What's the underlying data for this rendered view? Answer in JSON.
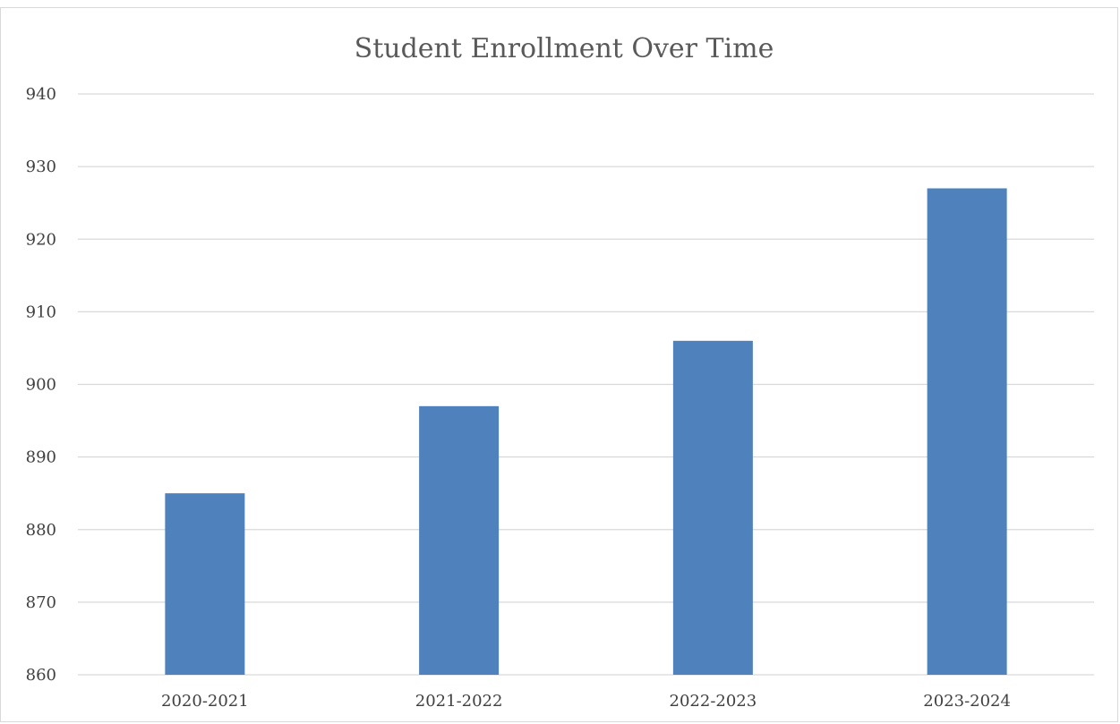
{
  "chart_data": {
    "type": "bar",
    "title": "Student Enrollment Over Time",
    "xlabel": "",
    "ylabel": "",
    "categories": [
      "2020-2021",
      "2021-2022",
      "2022-2023",
      "2023-2024"
    ],
    "values": [
      885,
      897,
      906,
      927
    ],
    "ylim": [
      860,
      940
    ],
    "yticks": [
      "860",
      "870",
      "880",
      "890",
      "900",
      "910",
      "920",
      "930",
      "940"
    ],
    "grid": true,
    "legend": "none",
    "bar_color": "#4f81bd"
  }
}
